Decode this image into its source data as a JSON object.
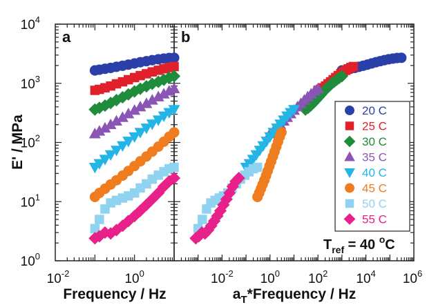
{
  "chart_data": [
    {
      "panel": "a",
      "type": "scatter",
      "xlabel": "Frequency / Hz",
      "ylabel": "E' / MPa",
      "x_scale": "log",
      "y_scale": "log",
      "xlim": [
        0.01,
        10
      ],
      "ylim": [
        1,
        10000
      ],
      "x_ticks": [
        "10-2",
        "100"
      ],
      "y_ticks": [
        "100",
        "101",
        "102",
        "103",
        "104"
      ],
      "series": [
        {
          "name": "20 C",
          "color": "#2b3fa8",
          "marker": "circle",
          "points": [
            [
              0.1,
              1650
            ],
            [
              0.13,
              1700
            ],
            [
              0.18,
              1760
            ],
            [
              0.25,
              1820
            ],
            [
              0.35,
              1900
            ],
            [
              0.5,
              1980
            ],
            [
              0.7,
              2070
            ],
            [
              1,
              2170
            ],
            [
              1.4,
              2270
            ],
            [
              2,
              2370
            ],
            [
              2.8,
              2460
            ],
            [
              4,
              2550
            ],
            [
              5.5,
              2620
            ],
            [
              7.5,
              2680
            ],
            [
              10,
              2700
            ]
          ]
        },
        {
          "name": "25 C",
          "color": "#e0202a",
          "marker": "square",
          "points": [
            [
              0.1,
              760
            ],
            [
              0.13,
              790
            ],
            [
              0.18,
              840
            ],
            [
              0.25,
              900
            ],
            [
              0.35,
              980
            ],
            [
              0.5,
              1060
            ],
            [
              0.7,
              1150
            ],
            [
              1,
              1250
            ],
            [
              1.4,
              1350
            ],
            [
              2,
              1450
            ],
            [
              2.8,
              1560
            ],
            [
              4,
              1660
            ],
            [
              5.5,
              1760
            ],
            [
              7.5,
              1850
            ],
            [
              10,
              1920
            ]
          ]
        },
        {
          "name": "30 C",
          "color": "#1e8c3a",
          "marker": "diamond",
          "points": [
            [
              0.1,
              360
            ],
            [
              0.13,
              385
            ],
            [
              0.18,
              420
            ],
            [
              0.25,
              465
            ],
            [
              0.35,
              520
            ],
            [
              0.5,
              580
            ],
            [
              0.7,
              650
            ],
            [
              1,
              730
            ],
            [
              1.4,
              810
            ],
            [
              2,
              890
            ],
            [
              2.8,
              980
            ],
            [
              4,
              1060
            ],
            [
              5.5,
              1150
            ],
            [
              7.5,
              1240
            ],
            [
              10,
              1320
            ]
          ]
        },
        {
          "name": "35 C",
          "color": "#8a55b5",
          "marker": "triangle-up",
          "points": [
            [
              0.1,
              140
            ],
            [
              0.13,
              155
            ],
            [
              0.18,
              175
            ],
            [
              0.25,
              200
            ],
            [
              0.35,
              230
            ],
            [
              0.5,
              265
            ],
            [
              0.7,
              305
            ],
            [
              1,
              350
            ],
            [
              1.4,
              400
            ],
            [
              2,
              455
            ],
            [
              2.8,
              520
            ],
            [
              4,
              590
            ],
            [
              5.5,
              660
            ],
            [
              7.5,
              740
            ],
            [
              10,
              810
            ]
          ]
        },
        {
          "name": "40 C",
          "color": "#22b5e6",
          "marker": "triangle-down",
          "points": [
            [
              0.1,
              38
            ],
            [
              0.13,
              44
            ],
            [
              0.18,
              52
            ],
            [
              0.25,
              62
            ],
            [
              0.35,
              74
            ],
            [
              0.5,
              88
            ],
            [
              0.7,
              105
            ],
            [
              1,
              125
            ],
            [
              1.4,
              148
            ],
            [
              2,
              175
            ],
            [
              2.8,
              205
            ],
            [
              4,
              240
            ],
            [
              5.5,
              280
            ],
            [
              7.5,
              320
            ],
            [
              10,
              360
            ]
          ]
        },
        {
          "name": "45 C",
          "color": "#f07c20",
          "marker": "circle",
          "points": [
            [
              0.1,
              12
            ],
            [
              0.13,
              14
            ],
            [
              0.18,
              16.5
            ],
            [
              0.25,
              19.5
            ],
            [
              0.35,
              23
            ],
            [
              0.5,
              27.5
            ],
            [
              0.7,
              33
            ],
            [
              1,
              40
            ],
            [
              1.4,
              48
            ],
            [
              2,
              58
            ],
            [
              2.8,
              70
            ],
            [
              4,
              85
            ],
            [
              5.5,
              103
            ],
            [
              7.5,
              125
            ],
            [
              10,
              148
            ]
          ]
        },
        {
          "name": "50 C",
          "color": "#8fd3f0",
          "marker": "square",
          "points": [
            [
              0.1,
              3.5
            ],
            [
              0.13,
              5
            ],
            [
              0.18,
              7.5
            ],
            [
              0.25,
              9.5
            ],
            [
              0.35,
              10.5
            ],
            [
              0.5,
              11.5
            ],
            [
              0.7,
              12.5
            ],
            [
              1,
              14
            ],
            [
              1.4,
              17
            ],
            [
              2,
              20
            ],
            [
              2.8,
              24
            ],
            [
              4,
              28
            ],
            [
              5.5,
              32
            ],
            [
              7.5,
              36
            ],
            [
              10,
              38
            ]
          ]
        },
        {
          "name": "55 C",
          "color": "#e8208a",
          "marker": "diamond",
          "points": [
            [
              0.1,
              2.4
            ],
            [
              0.13,
              2.6
            ],
            [
              0.18,
              3.0
            ],
            [
              0.25,
              2.9
            ],
            [
              0.35,
              3.3
            ],
            [
              0.5,
              3.9
            ],
            [
              0.7,
              4.7
            ],
            [
              1,
              5.7
            ],
            [
              1.4,
              7
            ],
            [
              2,
              8.8
            ],
            [
              2.8,
              11
            ],
            [
              4,
              14
            ],
            [
              5.5,
              18
            ],
            [
              7.5,
              22
            ],
            [
              10,
              25
            ]
          ]
        }
      ]
    },
    {
      "panel": "b",
      "type": "scatter",
      "xlabel": "aT*Frequency / Hz",
      "x_scale": "log",
      "y_scale": "log",
      "xlim": [
        0.0001,
        1000000
      ],
      "ylim": [
        1,
        10000
      ],
      "x_ticks": [
        "10-2",
        "100",
        "102",
        "104",
        "106"
      ],
      "annotation": "Tref = 40 oC",
      "legend_placement": "right",
      "series": [
        {
          "name": "20 C",
          "x_range": [
            1000,
            300000
          ]
        },
        {
          "name": "25 C",
          "x_range": [
            100,
            3000
          ]
        },
        {
          "name": "30 C",
          "x_range": [
            30,
            1000
          ]
        },
        {
          "name": "35 C",
          "x_range": [
            1,
            100
          ]
        },
        {
          "name": "40 C",
          "x_range": [
            0.1,
            10
          ]
        },
        {
          "name": "45 C",
          "x_range": [
            0.3,
            3
          ]
        },
        {
          "name": "50 C",
          "x_range": [
            0.001,
            0.3
          ]
        },
        {
          "name": "55 C",
          "x_range": [
            0.0008,
            0.05
          ]
        }
      ]
    }
  ],
  "figure": {
    "panel_a_letter": "a",
    "panel_b_letter": "b",
    "ylabel": "E' / MPa",
    "xlabel_a": "Frequency / Hz",
    "xlabel_b_pre": "a",
    "xlabel_b_sub": "T",
    "xlabel_b_post": "*Frequency / Hz",
    "tref_pre": "T",
    "tref_sub": "ref",
    "tref_mid": " = 40 ",
    "tref_sup": "o",
    "tref_post": "C",
    "tick_base": "10"
  }
}
